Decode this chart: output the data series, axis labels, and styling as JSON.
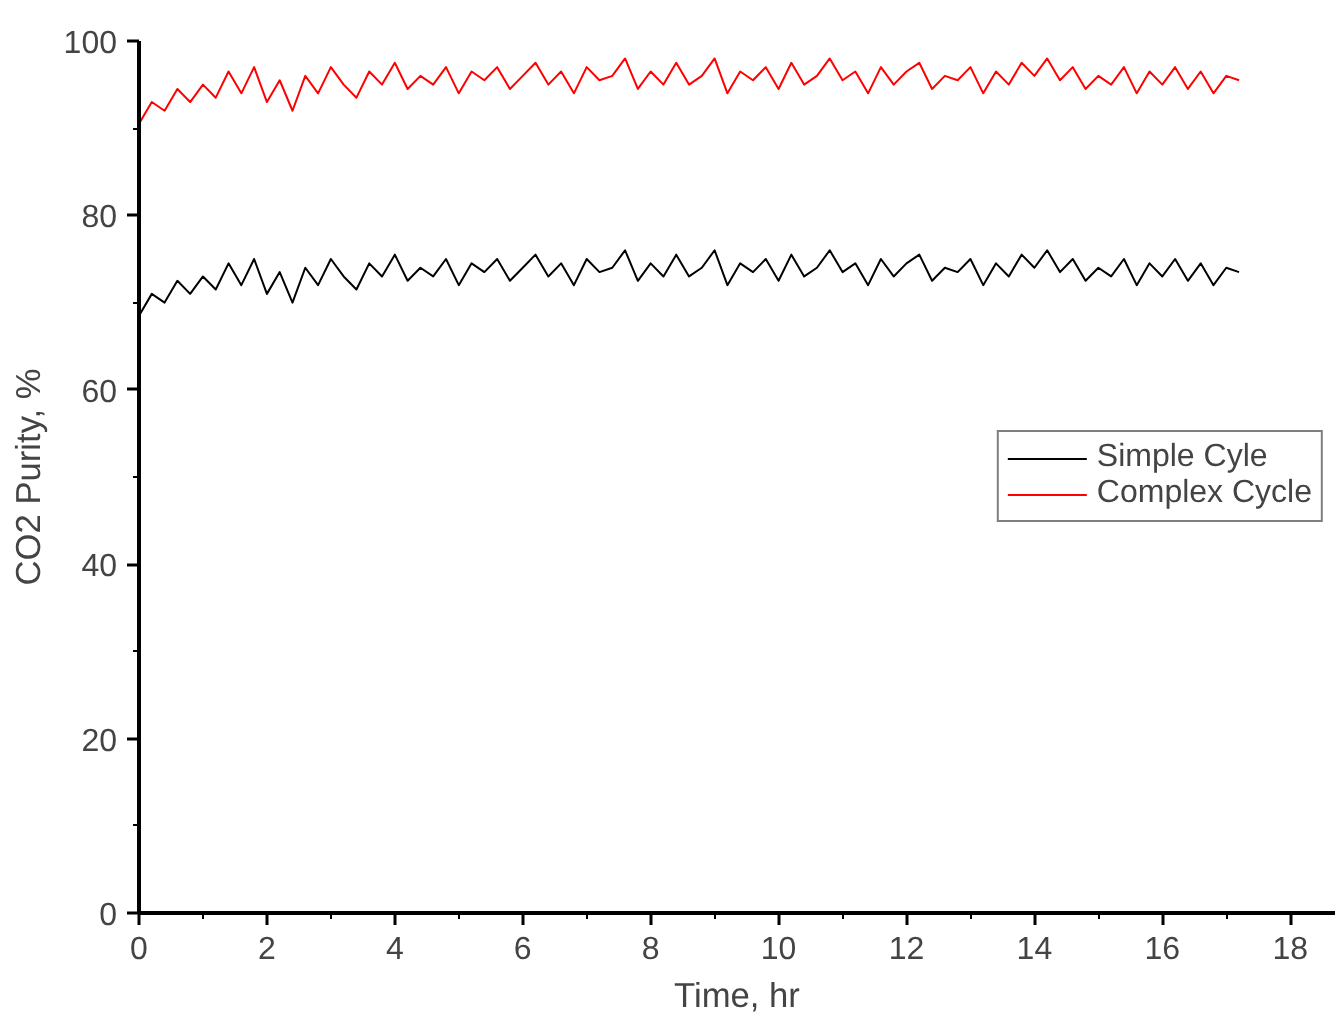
{
  "chart_data": {
    "type": "line",
    "xlabel": "Time, hr",
    "ylabel": "CO2 Purity, %",
    "x": [
      0,
      0.2,
      0.4,
      0.6,
      0.8,
      1,
      1.2,
      1.4,
      1.6,
      1.8,
      2,
      2.2,
      2.4,
      2.6,
      2.8,
      3,
      3.2,
      3.4,
      3.6,
      3.8,
      4,
      4.2,
      4.4,
      4.6,
      4.8,
      5,
      5.2,
      5.4,
      5.6,
      5.8,
      6,
      6.2,
      6.4,
      6.6,
      6.8,
      7,
      7.2,
      7.4,
      7.6,
      7.8,
      8,
      8.2,
      8.4,
      8.6,
      8.8,
      9,
      9.2,
      9.4,
      9.6,
      9.8,
      10,
      10.2,
      10.4,
      10.6,
      10.8,
      11,
      11.2,
      11.4,
      11.6,
      11.8,
      12,
      12.2,
      12.4,
      12.6,
      12.8,
      13,
      13.2,
      13.4,
      13.6,
      13.8,
      14,
      14.2,
      14.4,
      14.6,
      14.8,
      15,
      15.2,
      15.4,
      15.6,
      15.8,
      16,
      16.2,
      16.4,
      16.6,
      16.8,
      17,
      17.2
    ],
    "series": [
      {
        "name": "Simple Cyle",
        "color": "#000000",
        "values": [
          68.5,
          71,
          70,
          72.5,
          71,
          73,
          71.5,
          74.5,
          72,
          75,
          71,
          73.5,
          70,
          74,
          72,
          75,
          73,
          71.5,
          74.5,
          73,
          75.5,
          72.5,
          74,
          73,
          75,
          72,
          74.5,
          73.5,
          75,
          72.5,
          74,
          75.5,
          73,
          74.5,
          72,
          75,
          73.5,
          74,
          76,
          72.5,
          74.5,
          73,
          75.5,
          73,
          74,
          76,
          72,
          74.5,
          73.5,
          75,
          72.5,
          75.5,
          73,
          74,
          76,
          73.5,
          74.5,
          72,
          75,
          73,
          74.5,
          75.5,
          72.5,
          74,
          73.5,
          75,
          72,
          74.5,
          73,
          75.5,
          74,
          76,
          73.5,
          75,
          72.5,
          74,
          73,
          75,
          72,
          74.5,
          73,
          75,
          72.5,
          74.5,
          72,
          74,
          73.5
        ]
      },
      {
        "name": "Complex Cycle",
        "color": "#ff0000",
        "values": [
          90.5,
          93,
          92,
          94.5,
          93,
          95,
          93.5,
          96.5,
          94,
          97,
          93,
          95.5,
          92,
          96,
          94,
          97,
          95,
          93.5,
          96.5,
          95,
          97.5,
          94.5,
          96,
          95,
          97,
          94,
          96.5,
          95.5,
          97,
          94.5,
          96,
          97.5,
          95,
          96.5,
          94,
          97,
          95.5,
          96,
          98,
          94.5,
          96.5,
          95,
          97.5,
          95,
          96,
          98,
          94,
          96.5,
          95.5,
          97,
          94.5,
          97.5,
          95,
          96,
          98,
          95.5,
          96.5,
          94,
          97,
          95,
          96.5,
          97.5,
          94.5,
          96,
          95.5,
          97,
          94,
          96.5,
          95,
          97.5,
          96,
          98,
          95.5,
          97,
          94.5,
          96,
          95,
          97,
          94,
          96.5,
          95,
          97,
          94.5,
          96.5,
          94,
          96,
          95.5
        ]
      }
    ],
    "xlim": [
      0,
      18.7
    ],
    "ylim": [
      0,
      100
    ],
    "xticks": [
      0,
      {
        "value": 1,
        "label": null
      },
      2,
      {
        "value": 3,
        "label": null
      },
      4,
      {
        "value": 5,
        "label": null
      },
      6,
      {
        "value": 7,
        "label": null
      },
      8,
      {
        "value": 9,
        "label": null
      },
      10,
      {
        "value": 11,
        "label": null
      },
      12,
      {
        "value": 13,
        "label": null
      },
      14,
      {
        "value": 15,
        "label": null
      },
      16,
      {
        "value": 17,
        "label": null
      },
      18
    ],
    "yticks": [
      0,
      {
        "value": 10,
        "label": null
      },
      20,
      {
        "value": 30,
        "label": null
      },
      40,
      {
        "value": 50,
        "label": null
      },
      60,
      {
        "value": 70,
        "label": null
      },
      80,
      {
        "value": 90,
        "label": null
      },
      100
    ],
    "grid": false,
    "legend": "right",
    "line_style": "solid",
    "marker": "none"
  }
}
